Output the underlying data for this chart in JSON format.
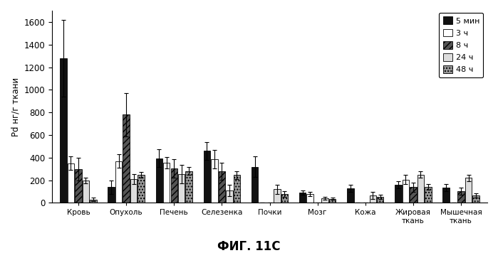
{
  "categories": [
    "Кровь",
    "Опухоль",
    "Печень",
    "Селезенка",
    "Почки",
    "Мозг",
    "Кожа",
    "Жировая\nткань",
    "Мышечная\nткань"
  ],
  "series_labels": [
    "5 мин",
    "3 ч",
    "8 ч",
    "24 ч",
    "48 ч"
  ],
  "values": [
    [
      1280,
      140,
      395,
      460,
      320,
      90,
      130,
      160,
      135
    ],
    [
      350,
      370,
      355,
      385,
      0,
      80,
      0,
      205,
      0
    ],
    [
      300,
      780,
      305,
      280,
      0,
      0,
      0,
      140,
      105
    ],
    [
      200,
      210,
      255,
      110,
      120,
      40,
      65,
      250,
      220
    ],
    [
      30,
      250,
      280,
      245,
      80,
      35,
      55,
      140,
      65
    ]
  ],
  "errors": [
    [
      340,
      60,
      80,
      80,
      90,
      20,
      30,
      30,
      30
    ],
    [
      60,
      60,
      50,
      80,
      0,
      20,
      0,
      40,
      0
    ],
    [
      100,
      190,
      80,
      75,
      0,
      0,
      0,
      40,
      30
    ],
    [
      25,
      45,
      80,
      50,
      40,
      15,
      30,
      30,
      30
    ],
    [
      15,
      25,
      35,
      35,
      25,
      10,
      20,
      25,
      20
    ]
  ],
  "bar_colors": [
    "#111111",
    "#ffffff",
    "#555555",
    "#dddddd",
    "#999999"
  ],
  "bar_hatches": [
    null,
    null,
    "////",
    null,
    "...."
  ],
  "bar_edge_colors": [
    "#000000",
    "#000000",
    "#000000",
    "#000000",
    "#000000"
  ],
  "ylabel": "Pd нг/г ткани",
  "title": "ФИГ. 11C",
  "ylim": [
    0,
    1700
  ],
  "yticks": [
    0,
    200,
    400,
    600,
    800,
    1000,
    1200,
    1400,
    1600
  ],
  "background_color": "#ffffff",
  "legend_fontsize": 8,
  "axis_fontsize": 8,
  "title_fontsize": 12,
  "group_width": 0.78,
  "bar_gap": 0.9
}
